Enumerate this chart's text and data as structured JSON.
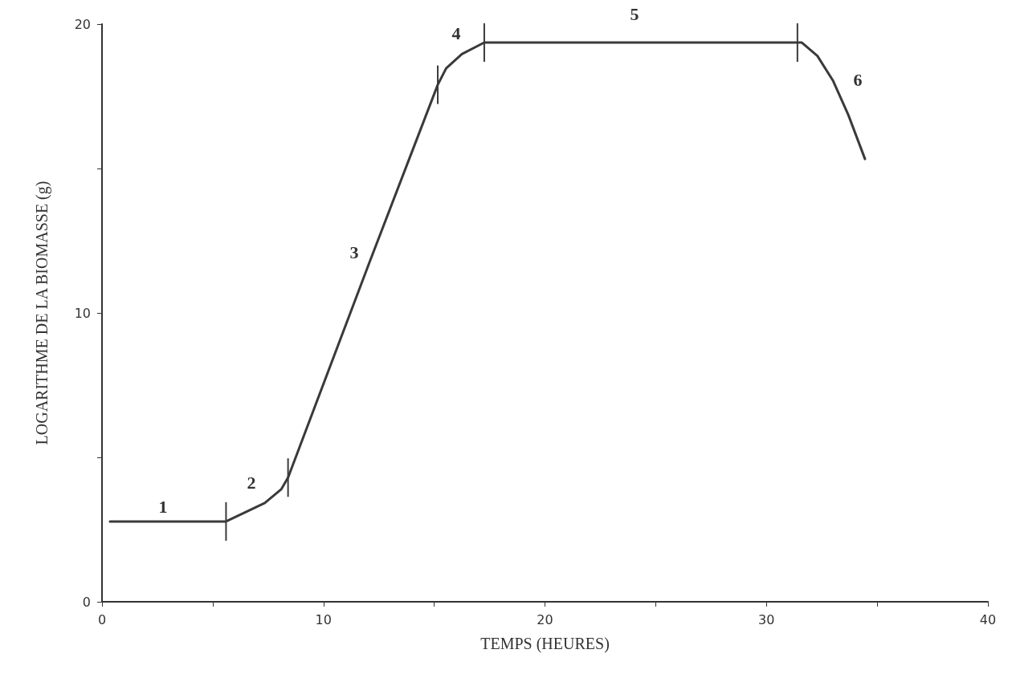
{
  "chart_data": {
    "type": "line",
    "xlabel": "TEMPS (HEURES)",
    "ylabel": "LOGARITHME DE LA BIOMASSE (g)",
    "series": [
      {
        "color": "#3a3a3a",
        "x": [
          0.36,
          5.6,
          7.35,
          8.1,
          8.4,
          12.1,
          15.16,
          15.54,
          16.25,
          17.26,
          31.4,
          31.6,
          32.3,
          33.0,
          33.7,
          34.45
        ],
        "values": [
          2.78,
          2.78,
          3.42,
          3.9,
          4.3,
          11.8,
          17.9,
          18.47,
          18.96,
          19.36,
          19.36,
          19.36,
          18.9,
          18.05,
          16.85,
          15.33
        ]
      }
    ],
    "xlim": [
      0,
      40
    ],
    "xticks": [
      0,
      {
        "value": 5,
        "label": null
      },
      10,
      {
        "value": 15,
        "label": null
      },
      20,
      {
        "value": 25,
        "label": null
      },
      30,
      {
        "value": 35,
        "label": null
      },
      40
    ],
    "ylim": [
      0,
      20
    ],
    "yticks": [
      0,
      {
        "value": 5,
        "label": null
      },
      10,
      {
        "value": 15,
        "label": null
      },
      20
    ],
    "grid": false,
    "marker": "none",
    "annotations": [
      "1",
      "2",
      "3",
      "4",
      "5",
      "6"
    ]
  }
}
